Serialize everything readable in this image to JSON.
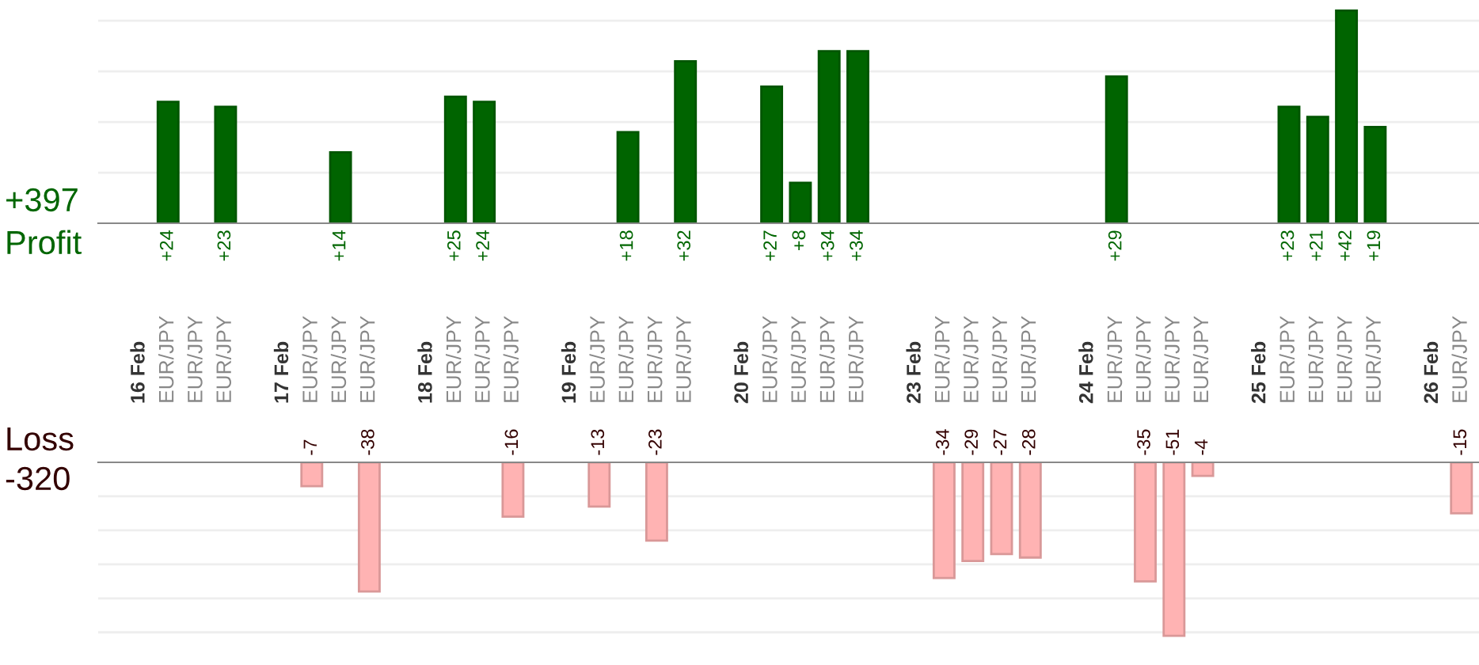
{
  "chart_data": [
    {
      "type": "bar",
      "categories": [
        "16 Feb",
        "EUR/JPY",
        "EUR/JPY",
        "EUR/JPY",
        null,
        "17 Feb",
        "EUR/JPY",
        "EUR/JPY",
        "EUR/JPY",
        null,
        "18 Feb",
        "EUR/JPY",
        "EUR/JPY",
        "EUR/JPY",
        null,
        "19 Feb",
        "EUR/JPY",
        "EUR/JPY",
        "EUR/JPY",
        "EUR/JPY",
        null,
        "20 Feb",
        "EUR/JPY",
        "EUR/JPY",
        "EUR/JPY",
        "EUR/JPY",
        null,
        "23 Feb",
        "EUR/JPY",
        "EUR/JPY",
        "EUR/JPY",
        "EUR/JPY",
        null,
        "24 Feb",
        "EUR/JPY",
        "EUR/JPY",
        "EUR/JPY",
        "EUR/JPY",
        null,
        "25 Feb",
        "EUR/JPY",
        "EUR/JPY",
        "EUR/JPY",
        "EUR/JPY",
        null,
        "26 Feb",
        "EUR/JPY"
      ],
      "values": [
        null,
        24,
        null,
        23,
        null,
        null,
        null,
        14,
        null,
        null,
        null,
        25,
        24,
        null,
        null,
        null,
        null,
        18,
        null,
        32,
        null,
        null,
        27,
        8,
        34,
        34,
        null,
        null,
        null,
        null,
        null,
        null,
        null,
        null,
        29,
        null,
        null,
        null,
        null,
        null,
        23,
        21,
        42,
        19,
        null,
        null,
        null
      ],
      "value_labels": [
        null,
        "+24",
        null,
        "+23",
        null,
        null,
        null,
        "+14",
        null,
        null,
        null,
        "+25",
        "+24",
        null,
        null,
        null,
        null,
        "+18",
        null,
        "+32",
        null,
        null,
        "+27",
        "+8",
        "+34",
        "+34",
        null,
        null,
        null,
        null,
        null,
        null,
        null,
        null,
        "+29",
        null,
        null,
        null,
        null,
        null,
        "+23",
        "+21",
        "+42",
        "+19",
        null,
        null,
        null
      ],
      "color": "#006400",
      "yticks": [
        {
          "value": 10,
          "label": null
        },
        {
          "value": 20,
          "label": null
        },
        {
          "value": 30,
          "label": null
        },
        {
          "value": 40,
          "label": null
        }
      ],
      "grid": "y",
      "annotations": [
        "+397",
        "Profit"
      ]
    },
    {
      "type": "bar",
      "categories": [
        null,
        null,
        null,
        null,
        null,
        null,
        null,
        null,
        null,
        null,
        null,
        null,
        null,
        null,
        null,
        null,
        null,
        null,
        null,
        null,
        null,
        null,
        null,
        null,
        null,
        null,
        null,
        null,
        null,
        null,
        null,
        null,
        null,
        null,
        null,
        null,
        null,
        null,
        null,
        null,
        null,
        null,
        null,
        null,
        null,
        null,
        null
      ],
      "values": [
        null,
        null,
        null,
        null,
        null,
        null,
        -7,
        null,
        -38,
        null,
        null,
        null,
        null,
        -16,
        null,
        null,
        -13,
        null,
        -23,
        null,
        null,
        null,
        null,
        null,
        null,
        null,
        null,
        null,
        -34,
        -29,
        -27,
        -28,
        null,
        null,
        null,
        -35,
        -51,
        -4,
        null,
        null,
        null,
        null,
        null,
        null,
        null,
        null,
        -15
      ],
      "value_labels": [
        null,
        null,
        null,
        null,
        null,
        null,
        "-7",
        null,
        "-38",
        null,
        null,
        null,
        null,
        "-16",
        null,
        null,
        "-13",
        null,
        "-23",
        null,
        null,
        null,
        null,
        null,
        null,
        null,
        null,
        null,
        "-34",
        "-29",
        "-27",
        "-28",
        null,
        null,
        null,
        "-35",
        "-51",
        "-4",
        null,
        null,
        null,
        null,
        null,
        null,
        null,
        null,
        "-15"
      ],
      "color": "#ffb3b3",
      "yticks": [
        {
          "value": -10,
          "label": null
        },
        {
          "value": -20,
          "label": null
        },
        {
          "value": -30,
          "label": null
        },
        {
          "value": -40,
          "label": null
        },
        {
          "value": -50,
          "label": null
        }
      ],
      "grid": "y",
      "annotations": [
        "Loss",
        "-320"
      ]
    }
  ]
}
